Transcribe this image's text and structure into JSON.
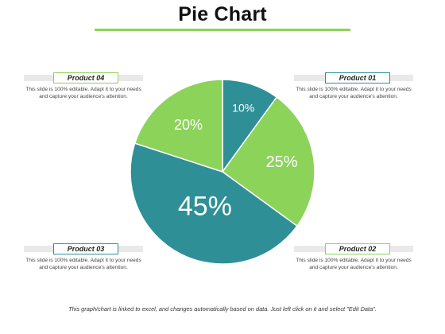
{
  "title": "Pie Chart",
  "footer": "This graph/chart is linked to excel, and changes automatically based on data.  Just left click on it and select \"Edit Data\".",
  "colors": {
    "teal": "#2e8f97",
    "green": "#8cd35a",
    "accent_line": "#8cd35a"
  },
  "labels": {
    "product_01": {
      "name": "Product 01",
      "description": "This slide is 100% editable. Adapt it to your needs and capture your audience's attention."
    },
    "product_02": {
      "name": "Product 02",
      "description": "This slide is 100% editable. Adapt it to your needs and capture your audience's attention."
    },
    "product_03": {
      "name": "Product 03",
      "description": "This slide is 100% editable. Adapt it to your needs and capture your audience's attention."
    },
    "product_04": {
      "name": "Product 04",
      "description": "This slide is 100% editable. Adapt it to your needs and capture your audience's attention."
    }
  },
  "chart_data": {
    "type": "pie",
    "title": "Pie Chart",
    "slices": [
      {
        "value": 10,
        "label": "10%",
        "color": "#2e8f97"
      },
      {
        "value": 25,
        "label": "25%",
        "color": "#8cd35a"
      },
      {
        "value": 45,
        "label": "45%",
        "color": "#2e8f97"
      },
      {
        "value": 20,
        "label": "20%",
        "color": "#8cd35a"
      }
    ]
  }
}
